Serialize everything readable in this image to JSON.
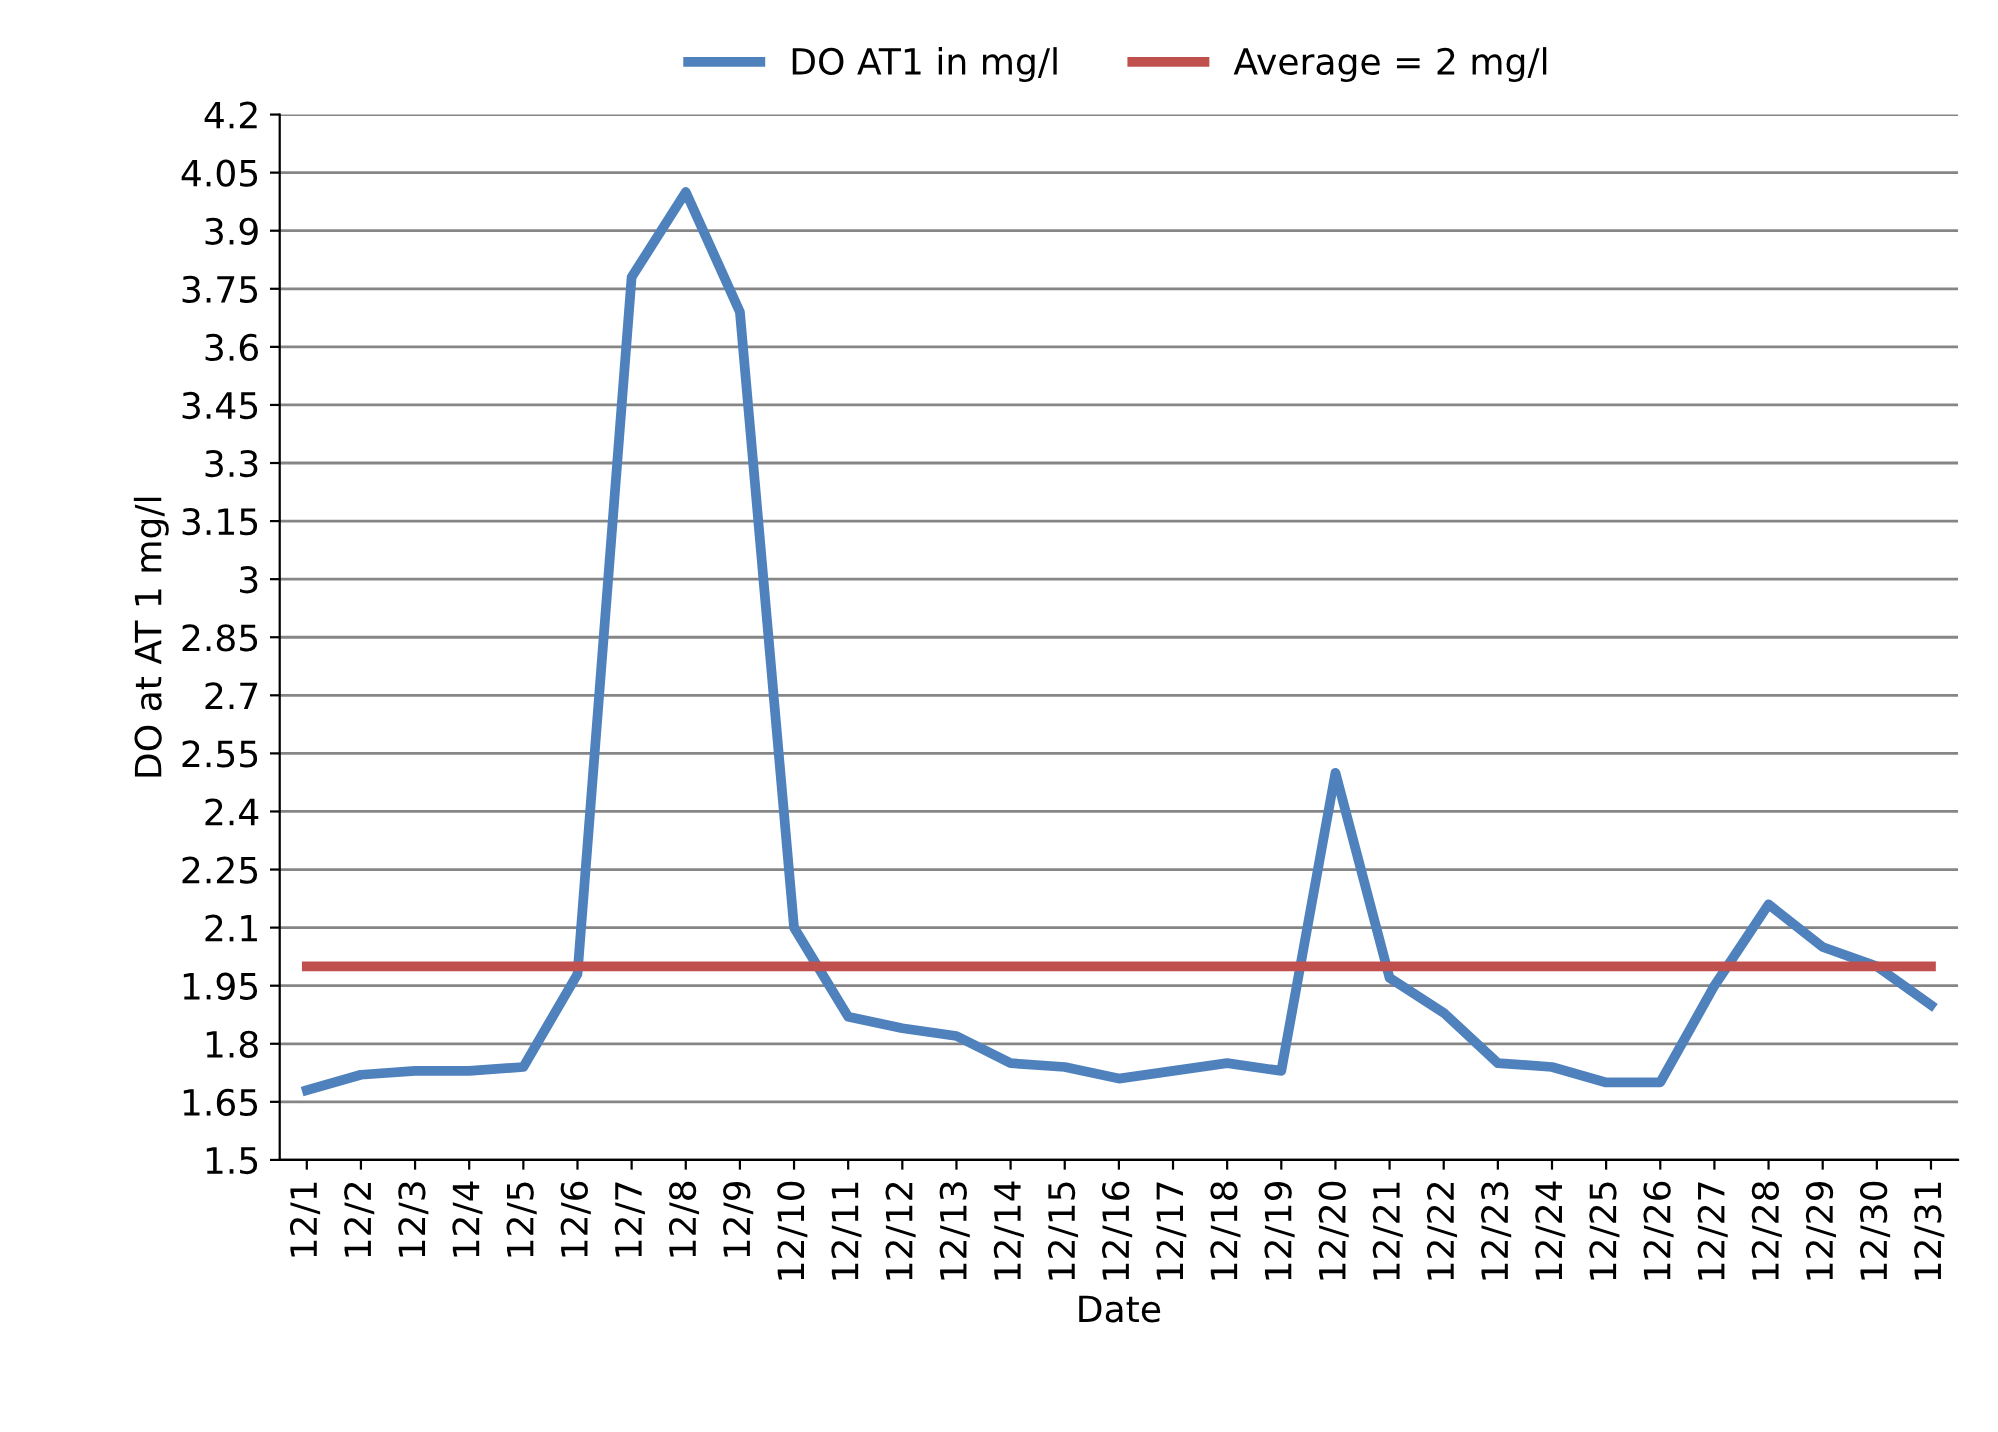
{
  "chart_data": {
    "type": "line",
    "xlabel": "Date",
    "ylabel": "DO at AT 1 mg/l",
    "categories": [
      "12/1",
      "12/2",
      "12/3",
      "12/4",
      "12/5",
      "12/6",
      "12/7",
      "12/8",
      "12/9",
      "12/10",
      "12/11",
      "12/12",
      "12/13",
      "12/14",
      "12/15",
      "12/16",
      "12/17",
      "12/18",
      "12/19",
      "12/20",
      "12/21",
      "12/22",
      "12/23",
      "12/24",
      "12/25",
      "12/26",
      "12/27",
      "12/28",
      "12/29",
      "12/30",
      "12/31"
    ],
    "series": [
      {
        "name": "DO AT1 in mg/l",
        "color": "#4f81bd",
        "values": [
          1.68,
          1.72,
          1.73,
          1.73,
          1.74,
          1.98,
          3.78,
          4.0,
          3.69,
          2.1,
          1.87,
          1.84,
          1.82,
          1.75,
          1.74,
          1.71,
          1.73,
          1.75,
          1.73,
          2.5,
          1.97,
          1.88,
          1.75,
          1.74,
          1.7,
          1.7,
          1.95,
          2.16,
          2.05,
          2.0,
          1.9
        ]
      },
      {
        "name": "Average = 2 mg/l",
        "color": "#c0504d",
        "values": [
          2,
          2,
          2,
          2,
          2,
          2,
          2,
          2,
          2,
          2,
          2,
          2,
          2,
          2,
          2,
          2,
          2,
          2,
          2,
          2,
          2,
          2,
          2,
          2,
          2,
          2,
          2,
          2,
          2,
          2,
          2
        ]
      }
    ],
    "ylim": [
      1.5,
      4.2
    ],
    "yticks": [
      1.5,
      1.65,
      1.8,
      1.95,
      2.1,
      2.25,
      2.4,
      2.55,
      2.7,
      2.85,
      3,
      3.15,
      3.3,
      3.45,
      3.6,
      3.75,
      3.9,
      4.05,
      4.2
    ],
    "grid": "y",
    "legend": "top",
    "marker": "none",
    "line_style": "solid"
  }
}
